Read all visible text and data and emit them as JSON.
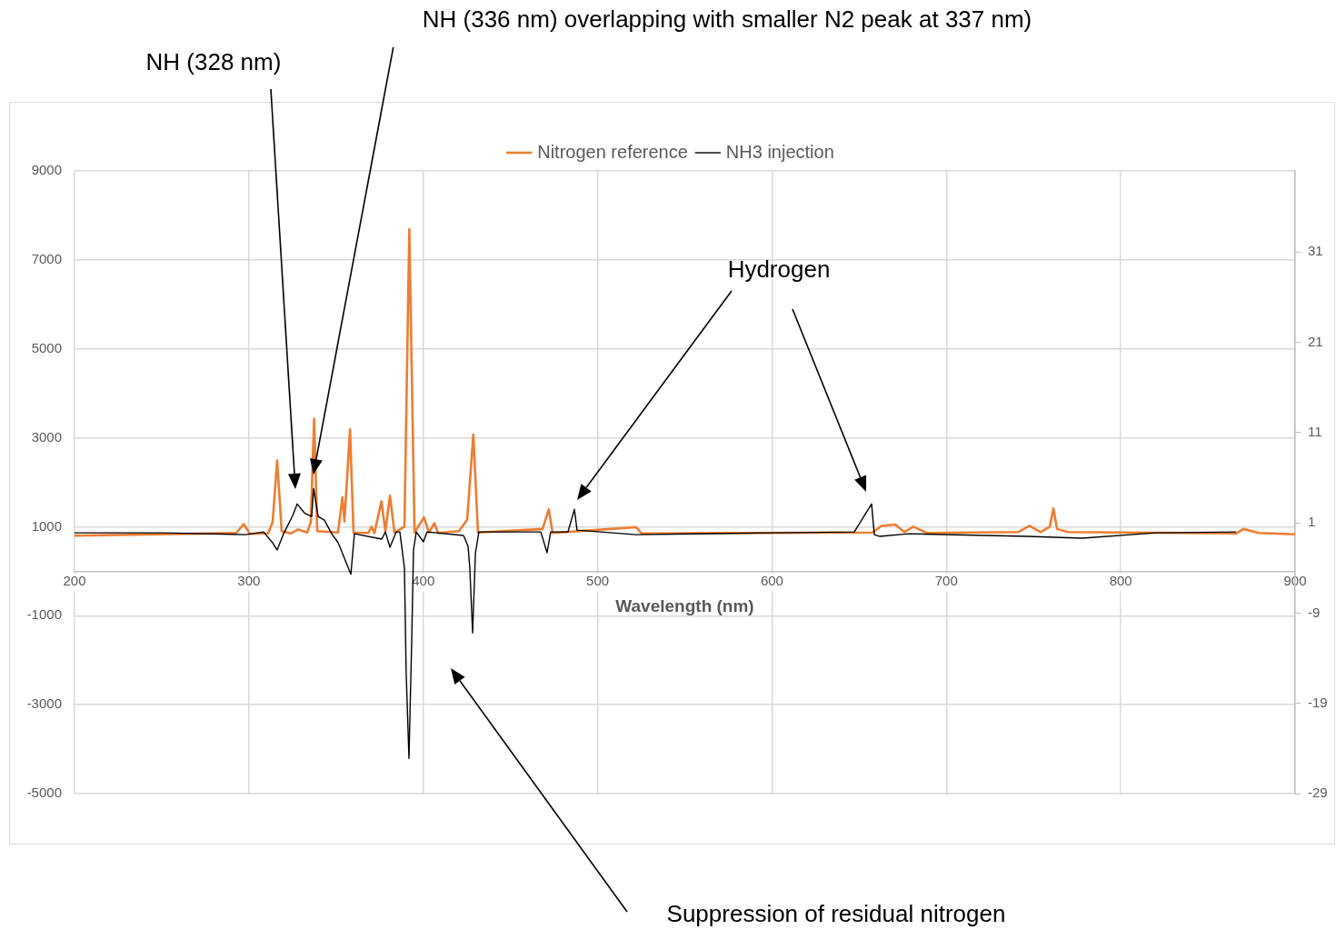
{
  "chart_data": {
    "type": "line",
    "xlabel": "Wavelength (nm)",
    "xlim": [
      200,
      900
    ],
    "xticks": [
      200,
      300,
      400,
      500,
      600,
      700,
      800,
      900
    ],
    "ylim": [
      -5000,
      9000
    ],
    "yticks": [
      -5000,
      -3000,
      -1000,
      1000,
      3000,
      5000,
      7000,
      9000
    ],
    "y2lim": [
      -29,
      40
    ],
    "y2ticks": [
      -29,
      -19,
      -9,
      1,
      11,
      21,
      31
    ],
    "grid": true,
    "legend": "top",
    "marker": "none",
    "series": [
      {
        "name": "Nitrogen reference",
        "color": "#ed7d31",
        "x": [
          200,
          292.8,
          297,
          300.6,
          311,
          313.6,
          316.2,
          318.8,
          324,
          328.2,
          333.4,
          335.5,
          337.4,
          339.2,
          351.1,
          353.6,
          354.8,
          358,
          360,
          368.4,
          370.4,
          372,
          376,
          378.3,
          380.9,
          383.5,
          389.2,
          392,
          395,
          400.4,
          403.3,
          406.4,
          408.5,
          420.5,
          425.2,
          428.7,
          431.4,
          468.4,
          472,
          474.2,
          522.1,
          525.2,
          657.6,
          662.8,
          670.7,
          675.9,
          681.1,
          688.9,
          741,
          747.8,
          754,
          759.3,
          761.4,
          763.5,
          769.7,
          866.1,
          870.3,
          879.2,
          900
        ],
        "values": [
          800,
          860,
          1060,
          840,
          850,
          1100,
          2490,
          900,
          850,
          940,
          870,
          1100,
          3430,
          900,
          870,
          1660,
          1120,
          3190,
          870,
          860,
          1000,
          860,
          1570,
          900,
          1700,
          870,
          1000,
          7690,
          870,
          1210,
          870,
          1080,
          860,
          900,
          1160,
          3070,
          870,
          950,
          1390,
          860,
          990,
          850,
          870,
          1020,
          1050,
          880,
          1000,
          860,
          880,
          1020,
          880,
          1000,
          1410,
          950,
          880,
          850,
          950,
          860,
          830
        ]
      },
      {
        "name": "NH3 injection",
        "color": "#000000",
        "axis": "y2",
        "x": [
          200,
          250,
          298,
          308.4,
          313.6,
          316.2,
          319.9,
          325.1,
          327.7,
          331.9,
          336,
          337.1,
          339.7,
          343.3,
          347.5,
          351.2,
          358.5,
          360.5,
          376.2,
          378.3,
          380.9,
          384.5,
          386.6,
          389.2,
          390.2,
          391.8,
          393.4,
          394.4,
          396,
          400.1,
          402.2,
          423.1,
          425.7,
          426.7,
          428.3,
          429.9,
          431.9,
          467.4,
          471,
          473.1,
          483,
          486.7,
          488.2,
          522.1,
          600,
          647.2,
          657.1,
          658.7,
          661.8,
          678.5,
          746.2,
          778,
          820,
          866.1
        ],
        "values": [
          -0.1,
          -0.1,
          -0.3,
          0,
          -1.2,
          -2,
          -0.2,
          1.8,
          3.1,
          2.1,
          1.7,
          4.8,
          1.7,
          1.3,
          -0.2,
          -1.2,
          -4.7,
          -0.2,
          -0.8,
          0,
          -1.7,
          0,
          0,
          -4,
          -15.6,
          -25.1,
          -11.8,
          -2,
          0,
          -1.1,
          0,
          -0.4,
          -1.6,
          -4,
          -11.2,
          -2.4,
          0,
          0,
          -2.3,
          0,
          0,
          2.5,
          0.2,
          -0.3,
          -0.1,
          0,
          3.1,
          -0.3,
          -0.5,
          -0.2,
          -0.5,
          -0.7,
          -0.1,
          0
        ]
      }
    ],
    "annotations": [
      "NH (328 nm)",
      "NH (336 nm) overlapping with smaller N2 peak at 337 nm)",
      "Hydrogen",
      "Suppression of residual nitrogen"
    ]
  }
}
